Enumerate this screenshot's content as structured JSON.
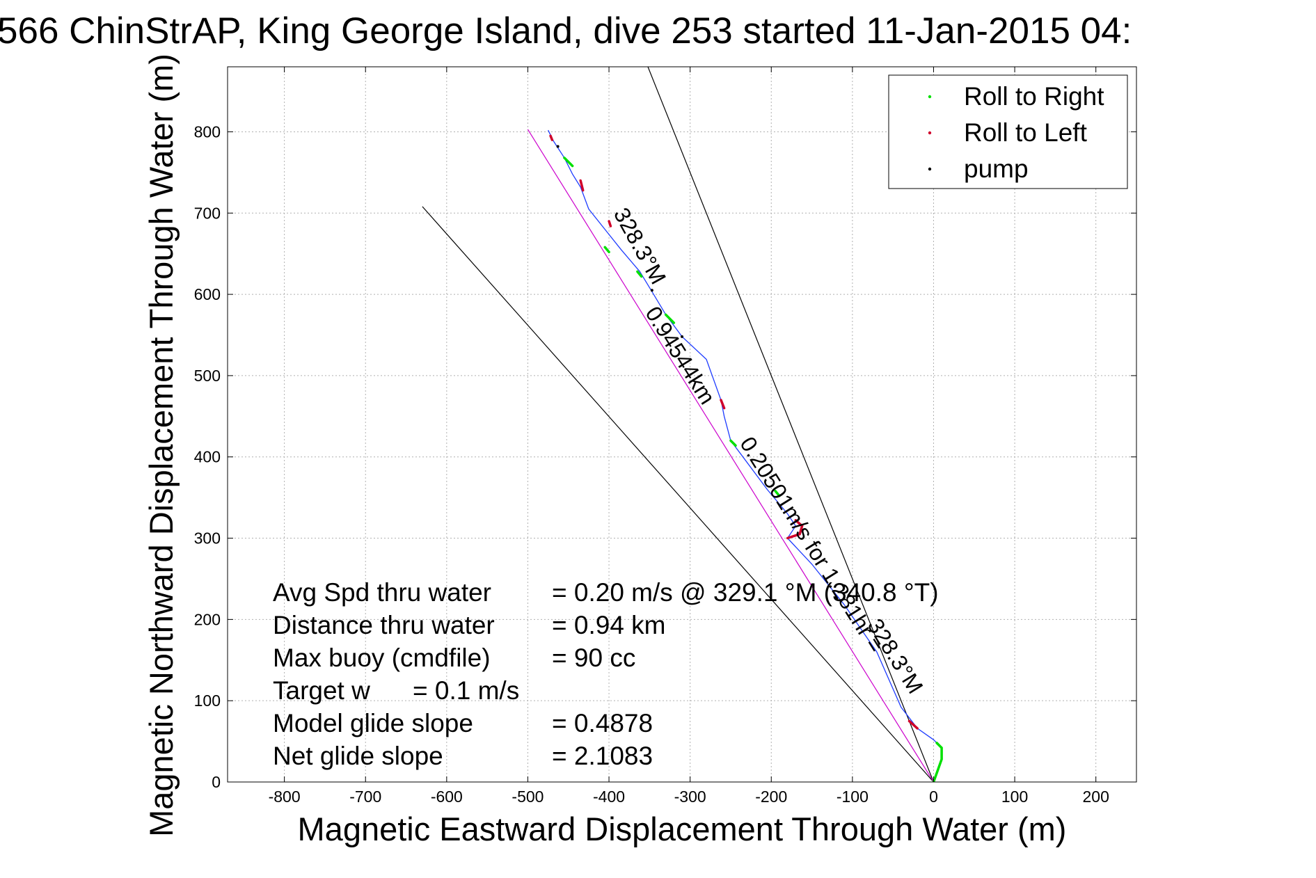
{
  "chart_data": {
    "type": "line",
    "title": "566 ChinStrAP, King George Island, dive 253 started 11-Jan-2015 04:",
    "xlabel": "Magnetic Eastward Displacement Through Water (m)",
    "ylabel": "Magnetic Northward Displacement Through Water (m)",
    "xlim": [
      -870,
      250
    ],
    "ylim": [
      0,
      880
    ],
    "x_ticks": [
      -800,
      -700,
      -600,
      -500,
      -400,
      -300,
      -200,
      -100,
      0,
      100,
      200
    ],
    "y_ticks": [
      0,
      100,
      200,
      300,
      400,
      500,
      600,
      700,
      800
    ],
    "grid": true,
    "legend_position": "top-right",
    "legend": [
      {
        "label": "Roll to Right",
        "color": "#00e000"
      },
      {
        "label": "Roll to Left",
        "color": "#d0002a"
      },
      {
        "label": "pump",
        "color": "#000000"
      }
    ],
    "track": {
      "color": "#1e3cff",
      "points": [
        [
          0,
          0
        ],
        [
          10,
          28
        ],
        [
          10,
          42
        ],
        [
          0,
          52
        ],
        [
          -20,
          66
        ],
        [
          -40,
          92
        ],
        [
          -70,
          160
        ],
        [
          -110,
          218
        ],
        [
          -150,
          268
        ],
        [
          -180,
          300
        ],
        [
          -170,
          315
        ],
        [
          -180,
          330
        ],
        [
          -205,
          360
        ],
        [
          -235,
          400
        ],
        [
          -250,
          420
        ],
        [
          -258,
          450
        ],
        [
          -262,
          470
        ],
        [
          -280,
          520
        ],
        [
          -310,
          548
        ],
        [
          -330,
          575
        ],
        [
          -345,
          600
        ],
        [
          -362,
          628
        ],
        [
          -385,
          655
        ],
        [
          -405,
          680
        ],
        [
          -425,
          705
        ],
        [
          -435,
          732
        ],
        [
          -445,
          748
        ],
        [
          -455,
          768
        ],
        [
          -468,
          788
        ],
        [
          -475,
          802
        ]
      ]
    },
    "roll_right_segments": [
      [
        [
          0,
          0
        ],
        [
          10,
          28
        ],
        [
          10,
          42
        ],
        [
          4,
          48
        ]
      ],
      [
        [
          -330,
          575
        ],
        [
          -320,
          565
        ]
      ],
      [
        [
          -250,
          420
        ],
        [
          -244,
          414
        ]
      ],
      [
        [
          -195,
          358
        ],
        [
          -190,
          352
        ]
      ],
      [
        [
          -405,
          658
        ],
        [
          -400,
          652
        ]
      ],
      [
        [
          -455,
          768
        ],
        [
          -445,
          758
        ]
      ],
      [
        [
          -365,
          628
        ],
        [
          -360,
          622
        ]
      ]
    ],
    "roll_left_segments": [
      [
        [
          -20,
          66
        ],
        [
          -30,
          75
        ]
      ],
      [
        [
          -180,
          300
        ],
        [
          -165,
          305
        ],
        [
          -162,
          315
        ],
        [
          -170,
          322
        ]
      ],
      [
        [
          -262,
          470
        ],
        [
          -258,
          460
        ]
      ],
      [
        [
          -435,
          740
        ],
        [
          -432,
          728
        ]
      ],
      [
        [
          -400,
          690
        ],
        [
          -398,
          684
        ]
      ],
      [
        [
          -472,
          795
        ],
        [
          -470,
          790
        ]
      ]
    ],
    "pump_points": [
      [
        -310,
        548
      ],
      [
        -463,
        782
      ],
      [
        -347,
        605
      ]
    ],
    "reference_lines": [
      {
        "color": "#000000",
        "points": [
          [
            0,
            0
          ],
          [
            -352,
            880
          ]
        ]
      },
      {
        "color": "#000000",
        "points": [
          [
            0,
            0
          ],
          [
            -630,
            708
          ]
        ]
      },
      {
        "color": "#cc00cc",
        "points": [
          [
            0,
            0
          ],
          [
            -500,
            803
          ]
        ]
      }
    ],
    "annotations": [
      {
        "text": "328.3°M",
        "x": -370,
        "y": 655,
        "angle": 61
      },
      {
        "text": "0.94544km",
        "x": -320,
        "y": 520,
        "angle": 58
      },
      {
        "text": "0.20501m/s for 1.281hr =",
        "x": -158,
        "y": 287,
        "angle": 58
      },
      {
        "text": "328.3°M",
        "x": -55,
        "y": 150,
        "angle": 58
      }
    ],
    "stats": [
      {
        "label": "Avg Spd thru water",
        "value": "=  0.20 m/s @ 329.1 °M (340.8 °T)"
      },
      {
        "label": "Distance thru water",
        "value": "=  0.94 km"
      },
      {
        "label": "Max buoy (cmdfile)",
        "value": "= 90 cc"
      },
      {
        "label": "Target w",
        "value": "= 0.1 m/s"
      },
      {
        "label": "Model glide slope",
        "value": "= 0.4878"
      },
      {
        "label": "Net glide slope",
        "value": "= 2.1083"
      }
    ]
  }
}
